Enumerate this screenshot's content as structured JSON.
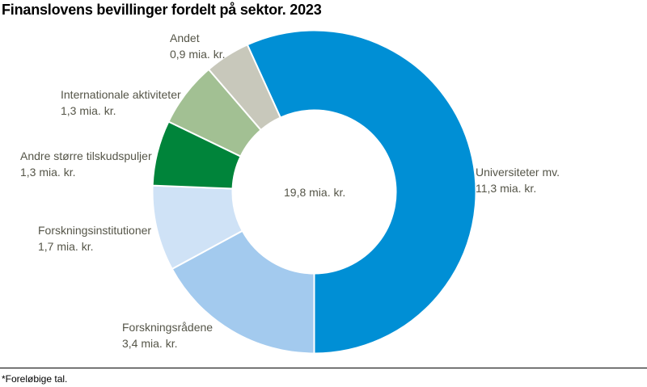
{
  "chart_data": {
    "type": "pie",
    "title": "Finanslovens bevillinger fordelt på sektor. 2023",
    "center_label": "19,8 mia. kr.",
    "unit": "mia. kr.",
    "slices": [
      {
        "name": "Universiteter mv.",
        "value": 11.3,
        "label": "11,3 mia. kr.",
        "color": "#008fd5"
      },
      {
        "name": "Forskningsrådene",
        "value": 3.4,
        "label": "3,4 mia. kr.",
        "color": "#a3caee"
      },
      {
        "name": "Forskningsinstitutioner",
        "value": 1.7,
        "label": "1,7 mia. kr.",
        "color": "#cfe2f6"
      },
      {
        "name": "Andre større tilskudspuljer",
        "value": 1.3,
        "label": "1,3 mia. kr.",
        "color": "#00843a"
      },
      {
        "name": "Internationale aktiviteter",
        "value": 1.3,
        "label": "1,3 mia. kr.",
        "color": "#a2c093"
      },
      {
        "name": "Andet",
        "value": 0.9,
        "label": "0,9 mia. kr.",
        "color": "#c8c8bb"
      }
    ],
    "footnote": "*Foreløbige tal."
  }
}
